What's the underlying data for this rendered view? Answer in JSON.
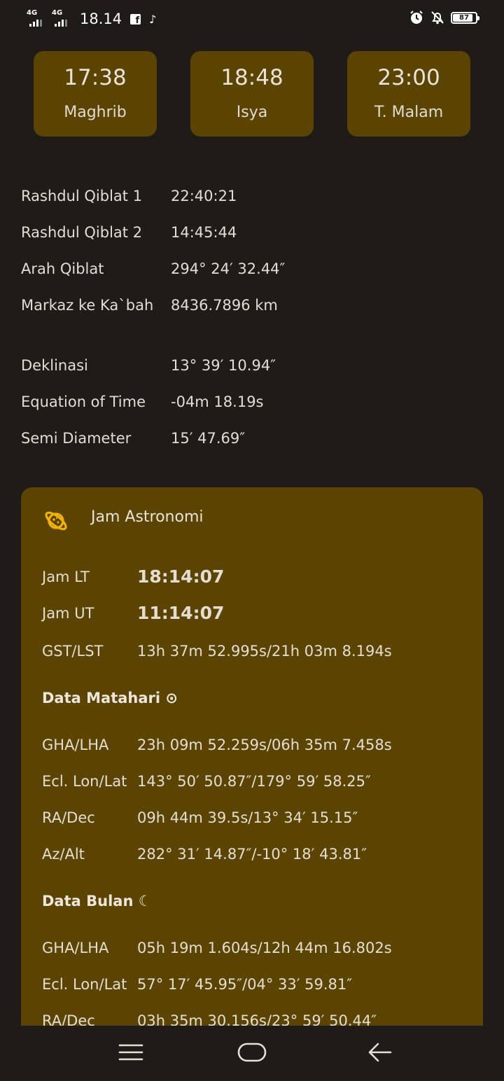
{
  "status_bar": {
    "network1": "4G",
    "network2": "4G",
    "time": "18.14",
    "battery": "87",
    "battery_level": 0.87,
    "icons": [
      "facebook-icon",
      "tiktok-icon",
      "alarm-icon",
      "notifications-off-icon",
      "battery-icon"
    ]
  },
  "prayer_times": [
    {
      "time": "17:38",
      "name": "Maghrib"
    },
    {
      "time": "18:48",
      "name": "Isya"
    },
    {
      "time": "23:00",
      "name": "T. Malam"
    }
  ],
  "qiblat": [
    {
      "label": "Rashdul Qiblat 1",
      "value": "22:40:21"
    },
    {
      "label": "Rashdul Qiblat 2",
      "value": "14:45:44"
    },
    {
      "label": "Arah Qiblat",
      "value": "294° 24′ 32.44″"
    },
    {
      "label": "Markaz ke Ka`bah",
      "value": "8436.7896 km"
    }
  ],
  "sun_info": [
    {
      "label": "Deklinasi",
      "value": "13° 39′ 10.94″"
    },
    {
      "label": "Equation of Time",
      "value": "-04m 18.19s"
    },
    {
      "label": "Semi Diameter",
      "value": "15′ 47.69″"
    }
  ],
  "astronomy": {
    "title": "Jam Astronomi",
    "icon": "planet-icon",
    "clock": [
      {
        "label": "Jam LT",
        "value": "18:14:07"
      },
      {
        "label": "Jam UT",
        "value": "11:14:07"
      },
      {
        "label": "GST/LST",
        "value": "13h 37m 52.995s/21h 03m 8.194s"
      }
    ],
    "sun_header": "Data Matahari ⊙",
    "sun": [
      {
        "label": "GHA/LHA",
        "value": "23h 09m 52.259s/06h 35m 7.458s"
      },
      {
        "label": "Ecl. Lon/Lat",
        "value": "143° 50′ 50.87″/179° 59′ 58.25″"
      },
      {
        "label": "RA/Dec",
        "value": "09h 44m 39.5s/13° 34′ 15.15″"
      },
      {
        "label": "Az/Alt",
        "value": "282° 31′ 14.87″/-10° 18′ 43.81″"
      }
    ],
    "moon_header": "Data Bulan ☾",
    "moon": [
      {
        "label": "GHA/LHA",
        "value": "05h 19m 1.604s/12h 44m 16.802s"
      },
      {
        "label": "Ecl. Lon/Lat",
        "value": "57° 17′ 45.95″/04° 33′ 59.81″"
      },
      {
        "label": "RA/Dec",
        "value": "03h 35m 30.156s/23° 59′ 50.44″"
      }
    ]
  },
  "nav": {
    "buttons": [
      "menu-icon",
      "home-icon",
      "back-icon"
    ]
  },
  "colors": {
    "background": "#1e1b18",
    "card": "#5b4400",
    "accent_icon": "#f2b300",
    "text": "#e2ddd3"
  }
}
